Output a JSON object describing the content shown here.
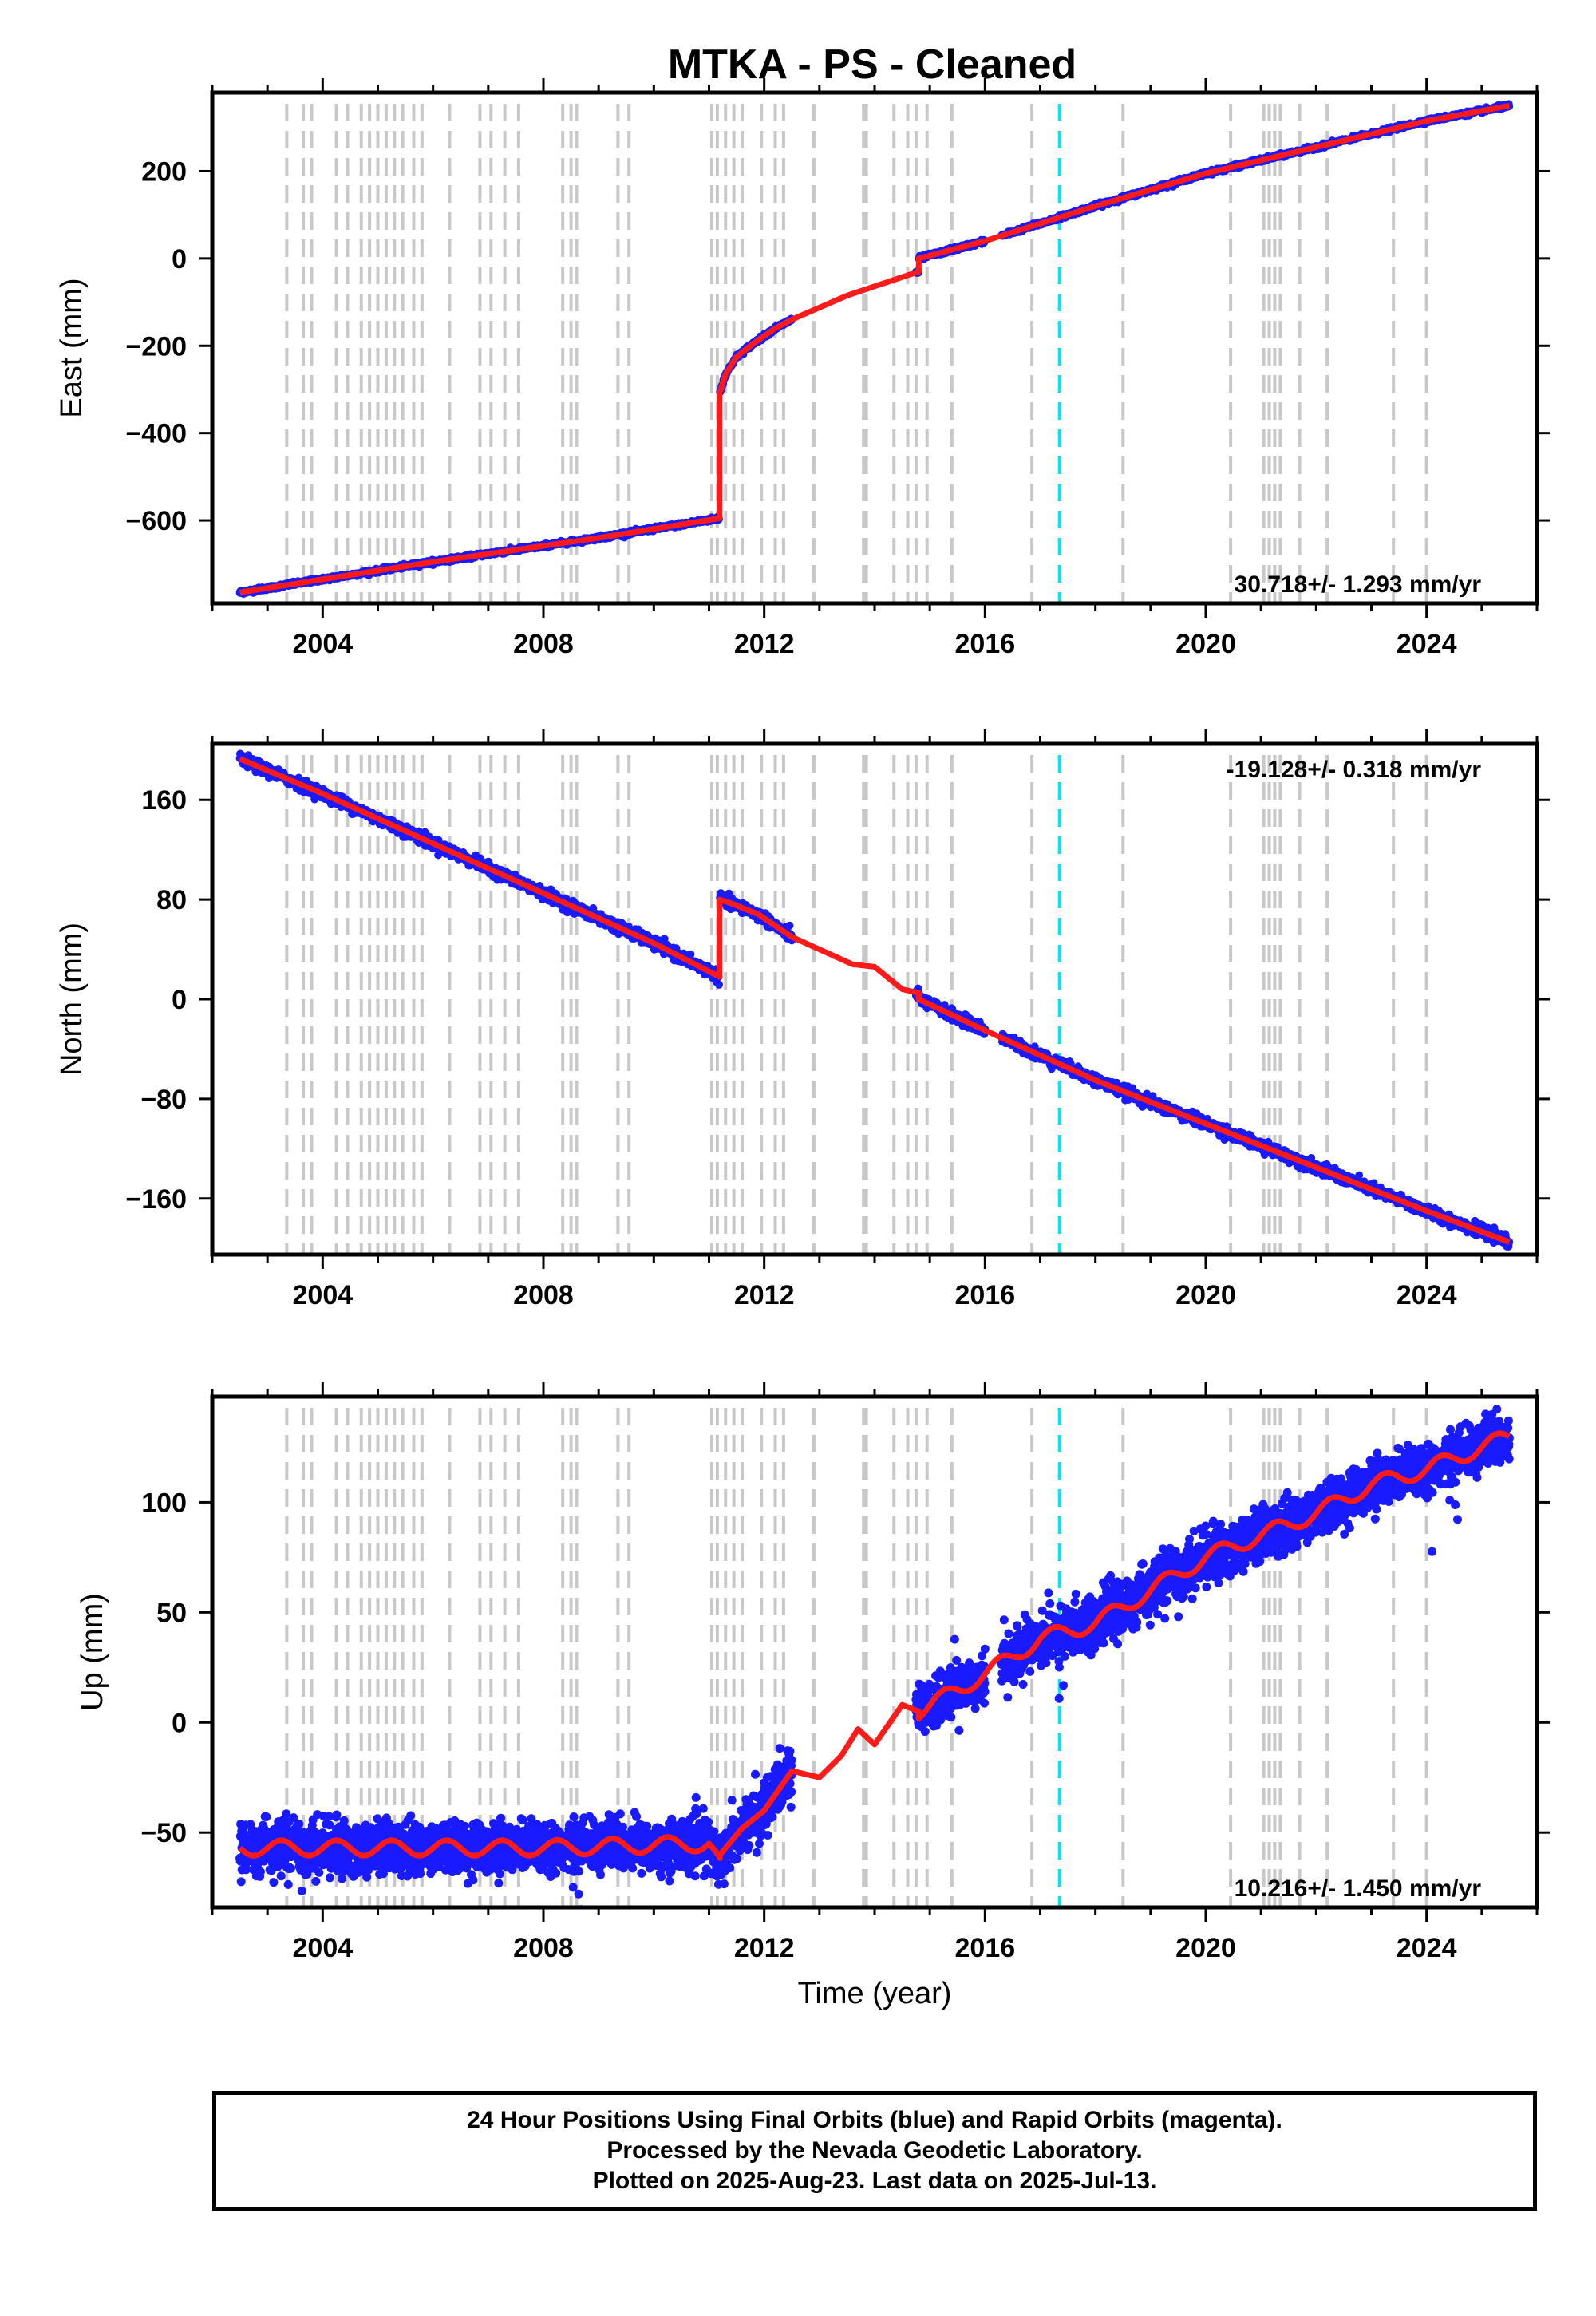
{
  "title": "MTKA  - PS - Cleaned",
  "colors": {
    "data_points": "#1a1aff",
    "model_line": "#ff1a1a",
    "steps": "#c8c8c8",
    "equipment_change": "#00e5ee"
  },
  "chart_data": [
    {
      "type": "scatter",
      "component": "east",
      "ylabel": "East (mm)",
      "xlabel": "",
      "xlim": [
        2002.0,
        2026.0
      ],
      "ylim": [
        -790,
        380
      ],
      "xticks": [
        "2004",
        "2008",
        "2012",
        "2016",
        "2020",
        "2024"
      ],
      "yticks": [
        "200",
        "0",
        "−200",
        "−400",
        "−600"
      ],
      "yticks_values": [
        200,
        0,
        -200,
        -400,
        -600
      ],
      "rate_label": "30.718+/- 1.293 mm/yr",
      "rate_position": "bottom-right",
      "segments": [
        {
          "x": [
            2002.5,
            2006.0,
            2009.0,
            2011.19
          ],
          "y": [
            -765,
            -695,
            -640,
            -595
          ]
        },
        {
          "x": [
            2011.19,
            2011.3,
            2011.5,
            2011.8,
            2012.2,
            2012.5
          ],
          "y": [
            -310,
            -265,
            -225,
            -195,
            -160,
            -140
          ]
        },
        {
          "x": [
            2012.5,
            2013.5,
            2014.8
          ],
          "y": [
            -140,
            -85,
            -30
          ]
        },
        {
          "x": [
            2014.8,
            2016.0,
            2018.0,
            2020.0,
            2022.0,
            2024.0,
            2025.5
          ],
          "y": [
            0,
            40,
            120,
            195,
            255,
            315,
            350
          ]
        }
      ],
      "data_segments": [
        [
          2002.5,
          2011.18
        ],
        [
          2011.2,
          2012.5
        ],
        [
          2014.75,
          2016.0
        ],
        [
          2016.3,
          2025.55
        ]
      ],
      "grid": false
    },
    {
      "type": "scatter",
      "component": "north",
      "ylabel": "North (mm)",
      "xlabel": "",
      "xlim": [
        2002.0,
        2026.0
      ],
      "ylim": [
        -205,
        205
      ],
      "xticks": [
        "2004",
        "2008",
        "2012",
        "2016",
        "2020",
        "2024"
      ],
      "yticks": [
        "160",
        "80",
        "0",
        "−80",
        "−160"
      ],
      "yticks_values": [
        160,
        80,
        0,
        -80,
        -160
      ],
      "rate_label": "-19.128+/- 0.318 mm/yr",
      "rate_position": "top-right",
      "segments": [
        {
          "x": [
            2002.5,
            2004.0,
            2006.0,
            2008.0,
            2010.0,
            2011.19
          ],
          "y": [
            193,
            165,
            125,
            85,
            45,
            18
          ]
        },
        {
          "x": [
            2011.19,
            2011.4,
            2011.9,
            2012.5
          ],
          "y": [
            80,
            77,
            68,
            50
          ]
        },
        {
          "x": [
            2012.5,
            2013.6,
            2014.0,
            2014.5,
            2014.8
          ],
          "y": [
            50,
            28,
            26,
            8,
            5
          ]
        },
        {
          "x": [
            2014.8,
            2016.0,
            2018.0,
            2020.0,
            2022.0,
            2024.0,
            2025.5
          ],
          "y": [
            0,
            -25,
            -65,
            -100,
            -135,
            -170,
            -195
          ]
        }
      ],
      "data_segments": [
        [
          2002.5,
          2011.18
        ],
        [
          2011.2,
          2012.5
        ],
        [
          2014.75,
          2016.0
        ],
        [
          2016.3,
          2025.55
        ]
      ],
      "grid": false
    },
    {
      "type": "scatter",
      "component": "up",
      "ylabel": "Up (mm)",
      "xlabel": "Time (year)",
      "xlim": [
        2002.0,
        2026.0
      ],
      "ylim": [
        -84,
        148
      ],
      "xticks": [
        "2004",
        "2008",
        "2012",
        "2016",
        "2020",
        "2024"
      ],
      "yticks": [
        "100",
        "50",
        "0",
        "−50"
      ],
      "yticks_values": [
        100,
        50,
        0,
        -50
      ],
      "rate_label": "10.216+/- 1.450 mm/yr",
      "rate_position": "bottom-right",
      "segments": [
        {
          "x": [
            2002.5,
            2005.0,
            2008.0,
            2011.0,
            2011.2
          ],
          "y": [
            -57,
            -57,
            -57,
            -55,
            -65
          ]
        },
        {
          "x": [
            2011.2,
            2011.6,
            2012.0,
            2012.5
          ],
          "y": [
            -60,
            -48,
            -40,
            -22
          ]
        },
        {
          "x": [
            2012.5,
            2013.0,
            2013.4,
            2013.7,
            2014.0,
            2014.5,
            2014.8
          ],
          "y": [
            -22,
            -25,
            -15,
            -3,
            -10,
            8,
            5
          ]
        },
        {
          "x": [
            2014.8,
            2016.0,
            2017.0,
            2018.0,
            2019.0,
            2020.0,
            2021.0,
            2022.0,
            2023.0,
            2024.0,
            2025.5
          ],
          "y": [
            5,
            22,
            38,
            45,
            60,
            75,
            85,
            95,
            108,
            115,
            130
          ]
        }
      ],
      "data_segments": [
        [
          2002.5,
          2011.18
        ],
        [
          2011.2,
          2012.5
        ],
        [
          2014.75,
          2016.0
        ],
        [
          2016.3,
          2025.55
        ]
      ],
      "grid": false
    }
  ],
  "step_lines_gray": [
    2003.35,
    2003.65,
    2003.8,
    2004.25,
    2004.45,
    2004.7,
    2004.85,
    2005.0,
    2005.15,
    2005.3,
    2005.45,
    2005.65,
    2005.8,
    2006.3,
    2006.85,
    2007.05,
    2007.3,
    2007.55,
    2008.35,
    2008.5,
    2008.6,
    2009.35,
    2009.55,
    2011.05,
    2011.15,
    2011.3,
    2011.45,
    2011.6,
    2011.95,
    2012.2,
    2012.35,
    2012.9,
    2013.8,
    2013.85,
    2014.35,
    2014.6,
    2014.75,
    2014.95,
    2015.4,
    2016.85,
    2018.5,
    2020.45,
    2021.05,
    2021.15,
    2021.25,
    2021.35,
    2021.7,
    2022.2,
    2023.4,
    2024.0
  ],
  "step_lines_cyan": [
    2017.35
  ],
  "footer": {
    "line1": "24 Hour Positions Using Final Orbits (blue) and Rapid Orbits (magenta).",
    "line2": "Processed by the Nevada Geodetic Laboratory.",
    "line3": "Plotted on 2025-Aug-23. Last data on 2025-Jul-13."
  }
}
